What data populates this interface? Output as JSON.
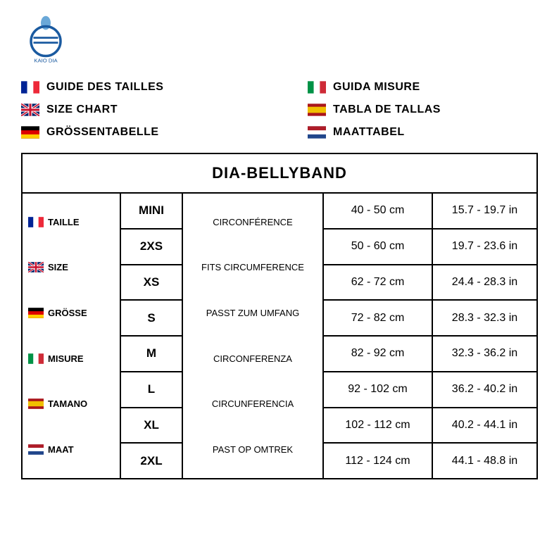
{
  "brand": "KAIO DIA",
  "languages": {
    "left": [
      {
        "flag": "fr",
        "label": "GUIDE DES TAILLES"
      },
      {
        "flag": "gb",
        "label": "SIZE CHART"
      },
      {
        "flag": "de",
        "label": "GRÖSSENTABELLE"
      }
    ],
    "right": [
      {
        "flag": "it",
        "label": "GUIDA MISURE"
      },
      {
        "flag": "es",
        "label": "TABLA DE TALLAS"
      },
      {
        "flag": "nl",
        "label": "MAATTABEL"
      }
    ]
  },
  "table": {
    "title": "DIA-BELLYBAND",
    "size_labels": [
      {
        "flag": "fr",
        "label": "TAILLE"
      },
      {
        "flag": "gb",
        "label": "SIZE"
      },
      {
        "flag": "de",
        "label": "GRÖSSE"
      },
      {
        "flag": "it",
        "label": "MISURE"
      },
      {
        "flag": "es",
        "label": "TAMANO"
      },
      {
        "flag": "nl",
        "label": "MAAT"
      }
    ],
    "circumference_labels": [
      "CIRCONFÉRENCE",
      "FITS CIRCUMFERENCE",
      "PASST ZUM UMFANG",
      "CIRCONFERENZA",
      "CIRCUNFERENCIA",
      "PAST OP OMTREK"
    ],
    "sizes": [
      "MINI",
      "2XS",
      "XS",
      "S",
      "M",
      "L",
      "XL",
      "2XL"
    ],
    "cm": [
      "40 - 50 cm",
      "50 - 60 cm",
      "62 - 72 cm",
      "72 - 82 cm",
      "82 - 92 cm",
      "92 - 102 cm",
      "102 - 112 cm",
      "112 - 124 cm"
    ],
    "in": [
      "15.7 - 19.7 in",
      "19.7 - 23.6 in",
      "24.4 - 28.3 in",
      "28.3 - 32.3 in",
      "32.3 - 36.2 in",
      "36.2 - 40.2 in",
      "40.2 - 44.1 in",
      "44.1 - 48.8 in"
    ]
  },
  "colors": {
    "border": "#000000",
    "text": "#000000",
    "bg": "#ffffff",
    "logo_blue": "#1a5aa0",
    "logo_light": "#6aa8d8"
  }
}
